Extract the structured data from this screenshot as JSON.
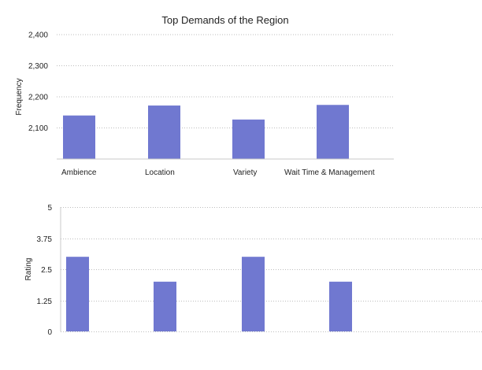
{
  "chart_data": [
    {
      "type": "bar",
      "title": "Top Demands of the Region",
      "xlabel": "",
      "ylabel": "Frequency",
      "categories": [
        "Ambience",
        "Location",
        "Variety",
        "Wait Time & Management"
      ],
      "values": [
        2140,
        2172,
        2127,
        2174
      ],
      "ylim": [
        2000,
        2400
      ],
      "yticks": [
        "2,100",
        "2,200",
        "2,300",
        "2,400"
      ],
      "ytick_values": [
        2100,
        2200,
        2300,
        2400
      ],
      "grid": true,
      "bar_color": "#7078d0"
    },
    {
      "type": "bar",
      "title": "",
      "xlabel": "",
      "ylabel": "Rating",
      "categories": [
        "Ambience",
        "Location",
        "Variety",
        "Wait Time & Management"
      ],
      "values": [
        3,
        2,
        3,
        2
      ],
      "ylim": [
        0,
        5
      ],
      "yticks": [
        "0",
        "1.25",
        "2.5",
        "3.75",
        "5"
      ],
      "ytick_values": [
        0,
        1.25,
        2.5,
        3.75,
        5
      ],
      "grid": true,
      "bar_color": "#7078d0"
    }
  ]
}
